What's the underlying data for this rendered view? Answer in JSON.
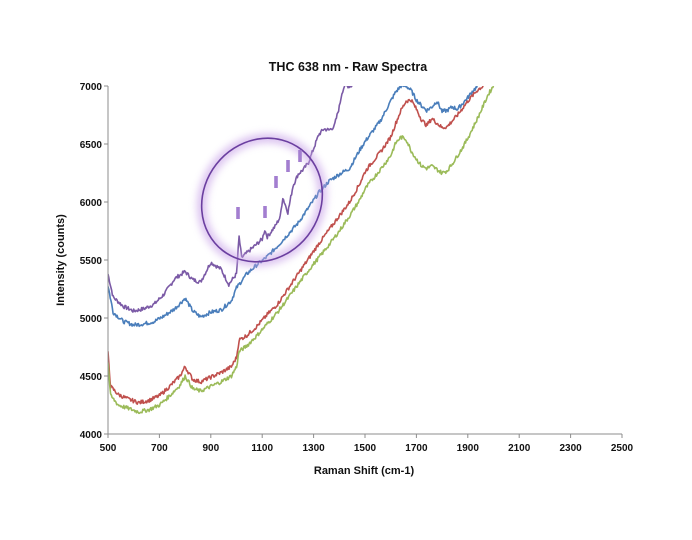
{
  "chart_data": {
    "type": "line",
    "title": "THC 638 nm - Raw Spectra",
    "xlabel": "Raman Shift (cm-1)",
    "ylabel": "Intensity (counts)",
    "xlim": [
      500,
      2500
    ],
    "ylim": [
      4000,
      7000
    ],
    "x_ticks": [
      "500",
      "700",
      "900",
      "1100",
      "1300",
      "1500",
      "1700",
      "1900",
      "2100",
      "2300",
      "2500"
    ],
    "y_ticks": [
      "4000",
      "4500",
      "5000",
      "5500",
      "6000",
      "6500",
      "7000"
    ],
    "grid": false,
    "legend": "none",
    "series": [
      {
        "color": "#7b5aa6",
        "x": [
          500,
          520,
          560,
          600,
          640,
          680,
          720,
          760,
          800,
          830,
          860,
          900,
          940,
          970,
          1000,
          1010,
          1020,
          1040,
          1080,
          1100,
          1110,
          1120,
          1150,
          1170,
          1180,
          1200,
          1220,
          1240,
          1260,
          1280,
          1300,
          1320,
          1340,
          1360,
          1380,
          1400,
          1410,
          1420,
          1440,
          1450
        ],
        "y": [
          5380,
          5180,
          5100,
          5060,
          5080,
          5120,
          5210,
          5340,
          5400,
          5330,
          5310,
          5480,
          5420,
          5290,
          5380,
          5700,
          5520,
          5560,
          5640,
          5680,
          5760,
          5700,
          5790,
          5870,
          6040,
          5910,
          6140,
          6240,
          6280,
          6340,
          6460,
          6580,
          6630,
          6620,
          6650,
          6820,
          6940,
          7000,
          7000,
          7000
        ]
      },
      {
        "color": "#4a7ebb",
        "x": [
          500,
          520,
          560,
          600,
          640,
          680,
          720,
          760,
          800,
          830,
          860,
          900,
          940,
          980,
          1000,
          1040,
          1080,
          1120,
          1160,
          1200,
          1240,
          1280,
          1320,
          1360,
          1400,
          1440,
          1480,
          1500,
          1520,
          1560,
          1600,
          1620,
          1640,
          1660,
          1680,
          1700,
          1720,
          1740,
          1760,
          1780,
          1800,
          1820,
          1840,
          1860,
          1880,
          1900,
          1920,
          1940
        ],
        "y": [
          5280,
          5050,
          4970,
          4940,
          4950,
          4970,
          5020,
          5080,
          5170,
          5060,
          5010,
          5050,
          5070,
          5150,
          5260,
          5380,
          5460,
          5530,
          5620,
          5720,
          5820,
          5950,
          6080,
          6180,
          6240,
          6290,
          6450,
          6520,
          6580,
          6700,
          6870,
          6950,
          7000,
          7000,
          6960,
          6880,
          6830,
          6790,
          6820,
          6870,
          6780,
          6790,
          6820,
          6800,
          6850,
          6900,
          6960,
          7000
        ]
      },
      {
        "color": "#c0504d",
        "x": [
          500,
          510,
          540,
          580,
          620,
          660,
          700,
          740,
          780,
          800,
          830,
          860,
          900,
          940,
          980,
          1000,
          1010,
          1040,
          1080,
          1120,
          1160,
          1200,
          1240,
          1280,
          1320,
          1360,
          1400,
          1440,
          1480,
          1500,
          1520,
          1560,
          1600,
          1620,
          1640,
          1660,
          1680,
          1700,
          1720,
          1740,
          1760,
          1780,
          1800,
          1820,
          1840,
          1860,
          1880,
          1900,
          1920,
          1940,
          1960
        ],
        "y": [
          4700,
          4410,
          4340,
          4300,
          4270,
          4290,
          4330,
          4410,
          4500,
          4580,
          4470,
          4450,
          4490,
          4530,
          4580,
          4660,
          4810,
          4850,
          4930,
          5030,
          5120,
          5250,
          5380,
          5510,
          5640,
          5760,
          5880,
          6000,
          6160,
          6260,
          6320,
          6430,
          6560,
          6680,
          6790,
          6870,
          6880,
          6800,
          6710,
          6660,
          6720,
          6680,
          6640,
          6650,
          6700,
          6750,
          6810,
          6870,
          6920,
          6970,
          7000
        ]
      },
      {
        "color": "#9bbb59",
        "x": [
          500,
          510,
          540,
          580,
          620,
          660,
          700,
          740,
          780,
          800,
          830,
          860,
          900,
          940,
          980,
          1000,
          1010,
          1040,
          1080,
          1120,
          1160,
          1200,
          1240,
          1280,
          1320,
          1360,
          1400,
          1440,
          1480,
          1500,
          1520,
          1560,
          1600,
          1620,
          1640,
          1660,
          1680,
          1700,
          1720,
          1740,
          1760,
          1780,
          1800,
          1820,
          1840,
          1860,
          1880,
          1900,
          1920,
          1940,
          1960,
          1980,
          2000
        ],
        "y": [
          4620,
          4330,
          4250,
          4220,
          4190,
          4210,
          4250,
          4330,
          4420,
          4500,
          4390,
          4370,
          4410,
          4450,
          4500,
          4580,
          4710,
          4760,
          4850,
          4950,
          5050,
          5170,
          5290,
          5410,
          5520,
          5630,
          5750,
          5880,
          6020,
          6110,
          6170,
          6280,
          6400,
          6510,
          6560,
          6540,
          6440,
          6370,
          6310,
          6290,
          6310,
          6280,
          6250,
          6270,
          6330,
          6400,
          6470,
          6550,
          6640,
          6730,
          6830,
          6930,
          7000
        ]
      }
    ]
  }
}
